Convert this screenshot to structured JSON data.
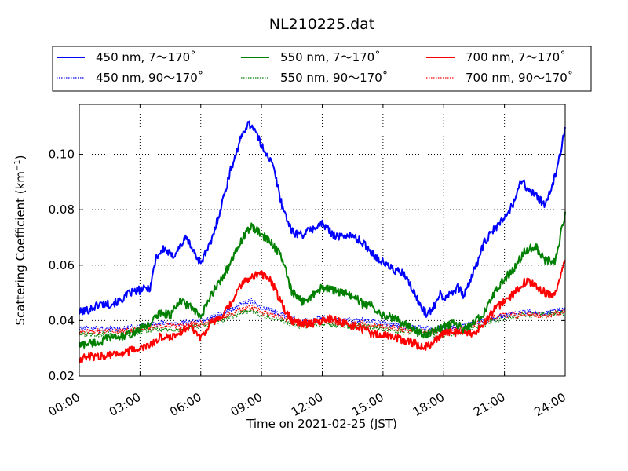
{
  "chart_data": {
    "type": "line",
    "title": "NL210225.dat",
    "xlabel": "Time on 2021-02-25 (JST)",
    "ylabel_main": "Scattering Coefficient (km",
    "ylabel_sup": "−1",
    "ylabel_close": ")",
    "xlim": [
      0,
      24
    ],
    "ylim": [
      0.02,
      0.118
    ],
    "x_ticks": [
      0,
      3,
      6,
      9,
      12,
      15,
      18,
      21,
      24
    ],
    "x_tick_labels": [
      "00:00",
      "03:00",
      "06:00",
      "09:00",
      "12:00",
      "15:00",
      "18:00",
      "21:00",
      "24:00"
    ],
    "y_ticks": [
      0.02,
      0.04,
      0.06,
      0.08,
      0.1
    ],
    "y_tick_labels": [
      "0.02",
      "0.04",
      "0.06",
      "0.08",
      "0.10"
    ],
    "grid": true,
    "legend_position": "top",
    "x_units": "hours since 00:00 JST",
    "series": [
      {
        "name": "450 nm, 7～170˚",
        "color": "#0000ff",
        "style": "solid",
        "x": [
          0,
          0.5,
          1,
          1.5,
          2,
          2.5,
          3,
          3.5,
          3.8,
          4.2,
          4.6,
          5,
          5.3,
          5.7,
          6,
          6.5,
          7,
          7.5,
          8,
          8.3,
          8.6,
          9,
          9.3,
          9.6,
          10,
          10.5,
          11,
          11.5,
          12,
          12.4,
          12.8,
          13.2,
          13.6,
          14,
          14.4,
          14.8,
          15.2,
          15.6,
          16,
          16.4,
          16.8,
          17.2,
          17.5,
          17.8,
          18,
          18.3,
          18.7,
          19,
          19.5,
          20,
          20.5,
          21,
          21.5,
          21.8,
          22.2,
          22.6,
          23,
          23.5,
          24
        ],
        "y": [
          0.043,
          0.044,
          0.046,
          0.046,
          0.047,
          0.05,
          0.051,
          0.052,
          0.063,
          0.066,
          0.063,
          0.067,
          0.07,
          0.064,
          0.061,
          0.068,
          0.081,
          0.095,
          0.106,
          0.111,
          0.11,
          0.103,
          0.1,
          0.095,
          0.082,
          0.072,
          0.071,
          0.073,
          0.075,
          0.072,
          0.07,
          0.071,
          0.07,
          0.068,
          0.065,
          0.062,
          0.06,
          0.058,
          0.057,
          0.052,
          0.046,
          0.042,
          0.045,
          0.05,
          0.048,
          0.05,
          0.052,
          0.049,
          0.058,
          0.068,
          0.073,
          0.077,
          0.083,
          0.091,
          0.087,
          0.085,
          0.081,
          0.092,
          0.109
        ]
      },
      {
        "name": "550 nm, 7～170˚",
        "color": "#008000",
        "style": "solid",
        "x": [
          0,
          0.5,
          1,
          1.5,
          2,
          2.5,
          3,
          3.5,
          4,
          4.5,
          5,
          5.5,
          6,
          6.5,
          7,
          7.5,
          8,
          8.5,
          9,
          9.5,
          10,
          10.5,
          11,
          11.5,
          12,
          12.5,
          13,
          13.5,
          14,
          14.5,
          15,
          15.5,
          16,
          16.5,
          17,
          17.5,
          18,
          18.5,
          19,
          19.5,
          20,
          20.5,
          21,
          21.5,
          22,
          22.5,
          23,
          23.5,
          24
        ],
        "y": [
          0.031,
          0.032,
          0.032,
          0.034,
          0.034,
          0.035,
          0.037,
          0.039,
          0.043,
          0.042,
          0.047,
          0.045,
          0.041,
          0.049,
          0.055,
          0.061,
          0.069,
          0.074,
          0.071,
          0.068,
          0.063,
          0.05,
          0.047,
          0.049,
          0.052,
          0.051,
          0.05,
          0.049,
          0.046,
          0.045,
          0.042,
          0.041,
          0.039,
          0.037,
          0.035,
          0.036,
          0.038,
          0.039,
          0.037,
          0.039,
          0.043,
          0.05,
          0.055,
          0.059,
          0.065,
          0.067,
          0.062,
          0.061,
          0.079
        ]
      },
      {
        "name": "700 nm, 7～170˚",
        "color": "#ff0000",
        "style": "solid",
        "x": [
          0,
          0.5,
          1,
          1.5,
          2,
          2.5,
          3,
          3.5,
          4,
          4.5,
          5,
          5.5,
          6,
          6.5,
          7,
          7.5,
          8,
          8.5,
          9,
          9.5,
          10,
          10.5,
          11,
          11.5,
          12,
          12.5,
          13,
          13.5,
          14,
          14.5,
          15,
          15.5,
          16,
          16.5,
          17,
          17.5,
          18,
          18.5,
          19,
          19.5,
          20,
          20.5,
          21,
          21.5,
          22,
          22.5,
          23,
          23.5,
          24
        ],
        "y": [
          0.026,
          0.027,
          0.027,
          0.028,
          0.028,
          0.029,
          0.03,
          0.031,
          0.034,
          0.034,
          0.036,
          0.038,
          0.034,
          0.039,
          0.041,
          0.046,
          0.053,
          0.056,
          0.057,
          0.054,
          0.046,
          0.04,
          0.039,
          0.039,
          0.04,
          0.041,
          0.039,
          0.038,
          0.037,
          0.035,
          0.035,
          0.034,
          0.033,
          0.032,
          0.03,
          0.032,
          0.036,
          0.036,
          0.035,
          0.035,
          0.039,
          0.044,
          0.047,
          0.05,
          0.054,
          0.053,
          0.05,
          0.049,
          0.062
        ]
      },
      {
        "name": "450 nm, 90～170˚",
        "color": "#0000ff",
        "style": "dotted",
        "x": [
          0,
          1,
          2,
          3,
          4,
          5,
          6,
          7,
          8,
          8.5,
          9,
          10,
          11,
          12,
          13,
          14,
          15,
          16,
          17,
          18,
          19,
          20,
          21,
          22,
          23,
          24
        ],
        "y": [
          0.037,
          0.037,
          0.037,
          0.038,
          0.039,
          0.039,
          0.04,
          0.042,
          0.046,
          0.047,
          0.045,
          0.042,
          0.04,
          0.041,
          0.04,
          0.04,
          0.039,
          0.038,
          0.037,
          0.037,
          0.038,
          0.04,
          0.042,
          0.043,
          0.043,
          0.044
        ]
      },
      {
        "name": "550 nm, 90～170˚",
        "color": "#008000",
        "style": "dotted",
        "x": [
          0,
          1,
          2,
          3,
          4,
          5,
          6,
          7,
          8,
          8.5,
          9,
          10,
          11,
          12,
          13,
          14,
          15,
          16,
          17,
          18,
          19,
          20,
          21,
          22,
          23,
          24
        ],
        "y": [
          0.035,
          0.035,
          0.035,
          0.036,
          0.037,
          0.037,
          0.038,
          0.04,
          0.043,
          0.044,
          0.042,
          0.04,
          0.038,
          0.039,
          0.038,
          0.038,
          0.037,
          0.036,
          0.035,
          0.035,
          0.036,
          0.039,
          0.041,
          0.042,
          0.042,
          0.043
        ]
      },
      {
        "name": "700 nm, 90～170˚",
        "color": "#ff0000",
        "style": "dotted",
        "x": [
          0,
          1,
          2,
          3,
          4,
          5,
          6,
          7,
          8,
          8.5,
          9,
          10,
          11,
          12,
          13,
          14,
          15,
          16,
          17,
          18,
          19,
          20,
          21,
          22,
          23,
          24
        ],
        "y": [
          0.036,
          0.036,
          0.036,
          0.037,
          0.038,
          0.038,
          0.039,
          0.041,
          0.044,
          0.045,
          0.043,
          0.041,
          0.039,
          0.04,
          0.039,
          0.039,
          0.038,
          0.037,
          0.036,
          0.036,
          0.037,
          0.04,
          0.042,
          0.042,
          0.042,
          0.043
        ]
      }
    ]
  }
}
